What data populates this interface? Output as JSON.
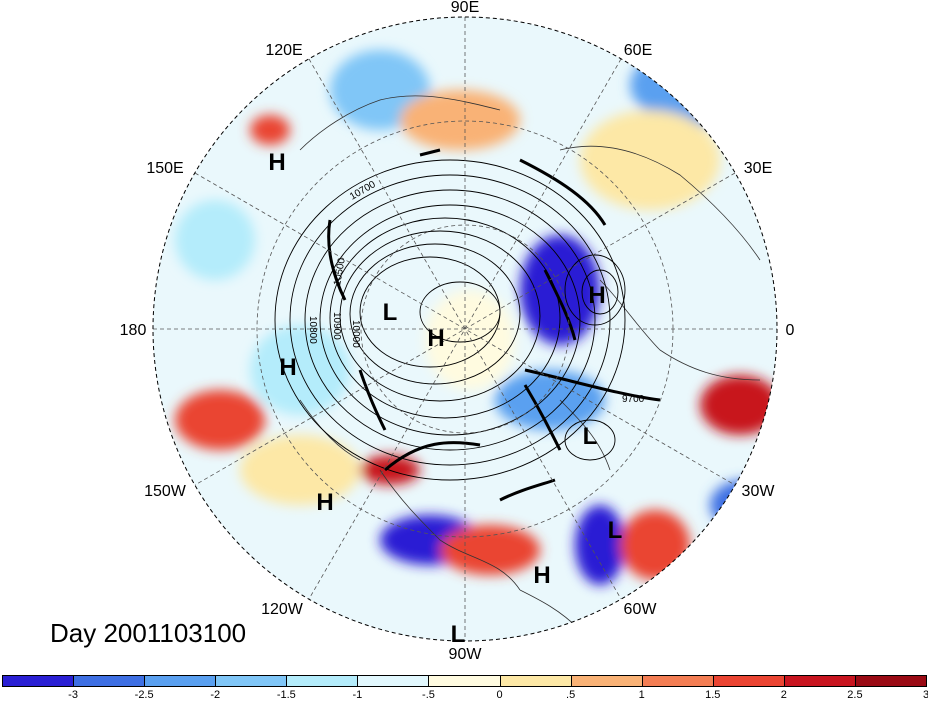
{
  "title": "Day 2001103100",
  "longitude_labels": {
    "lon_90E": "90E",
    "lon_60E": "60E",
    "lon_120E": "120E",
    "lon_30E": "30E",
    "lon_150E": "150E",
    "lon_0": "0",
    "lon_180": "180",
    "lon_30W": "30W",
    "lon_150W": "150W",
    "lon_60W": "60W",
    "lon_120W": "120W",
    "lon_90W": "90W"
  },
  "pressure_centers": {
    "h1": "H",
    "h2": "H",
    "h3": "H",
    "h4": "H",
    "h5": "H",
    "h6": "H",
    "l1": "L",
    "l2": "L",
    "l3": "L",
    "l4": "L"
  },
  "contour_labels": {
    "c10700a": "10700",
    "c10500": "10500",
    "c10800": "10800",
    "c10900": "10900",
    "c10000": "10000",
    "c9700": "9700"
  },
  "colorbar": {
    "colors": [
      "#2a1fd4",
      "#3e6fe3",
      "#5aa0f0",
      "#80c6f7",
      "#b4ecfb",
      "#e2f8fe",
      "#fffbe0",
      "#fde8a6",
      "#f9b276",
      "#f37d53",
      "#ea4432",
      "#c8141f",
      "#9a0a14"
    ],
    "ticks": [
      "-3",
      "-2.5",
      "-2",
      "-1.5",
      "-1",
      "-.5",
      "0",
      ".5",
      "1",
      "1.5",
      "2",
      "2.5",
      "3"
    ]
  }
}
